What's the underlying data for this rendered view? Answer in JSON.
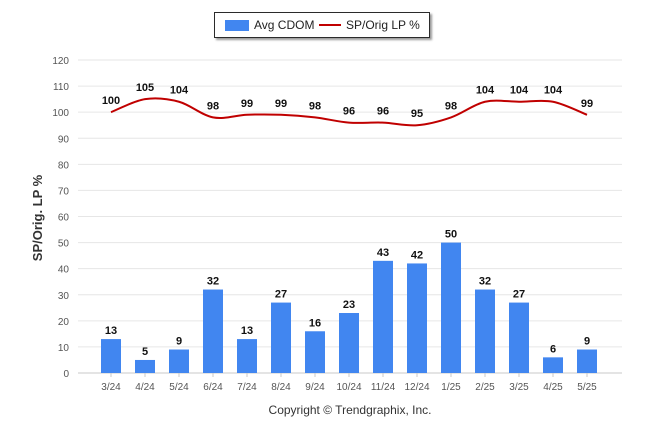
{
  "chart_data": {
    "type": "bar",
    "categories": [
      "3/24",
      "4/24",
      "5/24",
      "6/24",
      "7/24",
      "8/24",
      "9/24",
      "10/24",
      "11/24",
      "12/24",
      "1/25",
      "2/25",
      "3/25",
      "4/25",
      "5/25"
    ],
    "series": [
      {
        "name": "Avg CDOM",
        "kind": "bar",
        "color": "#4186f0",
        "values": [
          13,
          5,
          9,
          32,
          13,
          27,
          16,
          23,
          43,
          42,
          50,
          32,
          27,
          6,
          9
        ]
      },
      {
        "name": "SP/Orig LP %",
        "kind": "line",
        "color": "#c00000",
        "values": [
          100,
          105,
          104,
          98,
          99,
          99,
          98,
          96,
          96,
          95,
          98,
          104,
          104,
          104,
          99
        ]
      }
    ],
    "ylabel": "SP/Orig. LP %",
    "ylim": [
      0,
      120
    ],
    "yticks": [
      0,
      10,
      20,
      30,
      40,
      50,
      60,
      70,
      80,
      90,
      100,
      110,
      120
    ],
    "grid": true,
    "legend_position": "top-center"
  },
  "footer": {
    "copyright": "Copyright © Trendgraphix, Inc."
  }
}
